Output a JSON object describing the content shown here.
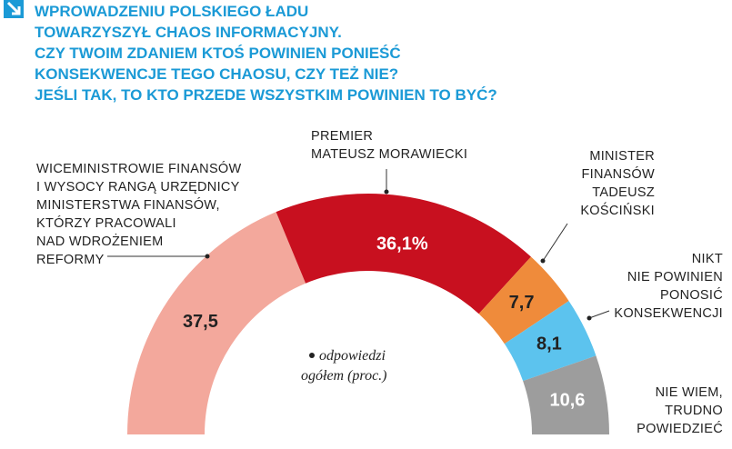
{
  "chart_data": {
    "type": "semi-donut",
    "title": [
      "WPROWADZENIU POLSKIEGO ŁADU",
      "TOWARZYSZYŁ CHAOS INFORMACYJNY.",
      "CZY TWOIM ZDANIEM KTOŚ POWINIEN PONIEŚĆ",
      "KONSEKWENCJE TEGO CHAOSU, CZY TEŻ NIE?",
      "JEŚLI TAK, TO KTO PRZEDE WSZYSTKIM POWINIEN TO BYĆ?"
    ],
    "note": [
      "odpowiedzi",
      "ogółem (proc.)"
    ],
    "categories": [
      [
        "WICEMINISTROWIE FINANSÓW",
        "I WYSOCY RANGĄ URZĘDNICY",
        "MINISTERSTWA FINANSÓW,",
        "KTÓRZY PRACOWALI",
        "NAD WDROŻENIEM",
        "REFORMY"
      ],
      [
        "PREMIER",
        "MATEUSZ MORAWIECKI"
      ],
      [
        "MINISTER",
        "FINANSÓW",
        "TADEUSZ",
        "KOŚCIŃSKI"
      ],
      [
        "NIKT",
        "NIE POWINIEN",
        "PONOSIĆ",
        "KONSEKWENCJI"
      ],
      [
        "NIE WIEM,",
        "TRUDNO",
        "POWIEDZIEĆ"
      ]
    ],
    "values": [
      37.5,
      36.1,
      7.7,
      8.1,
      10.6
    ],
    "value_labels": [
      "37,5",
      "36,1%",
      "7,7",
      "8,1",
      "10,6"
    ],
    "colors": [
      "#f3a89c",
      "#c8101f",
      "#ef8b3b",
      "#5cc3ee",
      "#9d9d9d"
    ]
  }
}
